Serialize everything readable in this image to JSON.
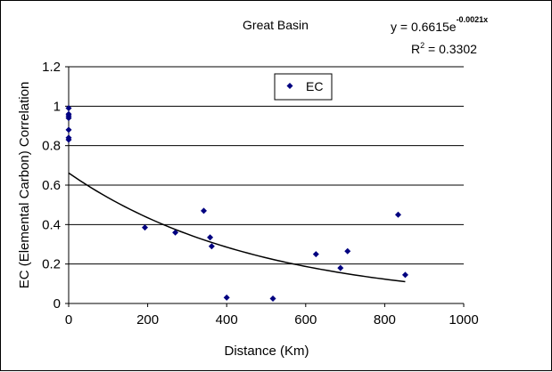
{
  "chart_data": {
    "type": "scatter",
    "title": "Great Basin",
    "xlabel": "Distance (Km)",
    "ylabel": "EC (Elemental Carbon) Correlation",
    "xlim": [
      0,
      1000
    ],
    "ylim": [
      0,
      1.2
    ],
    "x_ticks": [
      "0",
      "200",
      "400",
      "600",
      "800",
      "1000"
    ],
    "y_ticks": [
      "0",
      "0.2",
      "0.4",
      "0.6",
      "0.8",
      "1",
      "1.2"
    ],
    "grid": "horizontal",
    "legend": {
      "position": "top-center",
      "entries": [
        "EC"
      ]
    },
    "series": [
      {
        "name": "EC",
        "marker": "diamond",
        "color": "#000080",
        "points": [
          [
            0,
            0.99
          ],
          [
            0,
            0.96
          ],
          [
            0,
            0.95
          ],
          [
            0,
            0.94
          ],
          [
            0,
            0.88
          ],
          [
            0,
            0.84
          ],
          [
            0,
            0.83
          ],
          [
            193,
            0.385
          ],
          [
            270,
            0.36
          ],
          [
            342,
            0.47
          ],
          [
            358,
            0.335
          ],
          [
            362,
            0.29
          ],
          [
            400,
            0.03
          ],
          [
            517,
            0.025
          ],
          [
            626,
            0.25
          ],
          [
            688,
            0.18
          ],
          [
            706,
            0.265
          ],
          [
            834,
            0.45
          ],
          [
            852,
            0.145
          ]
        ]
      }
    ],
    "trendline": {
      "type": "exponential",
      "a": 0.6615,
      "b": -0.0021,
      "x_range": [
        0,
        852
      ],
      "color": "#000000",
      "equation_prefix": "y = 0.6615e",
      "equation_exponent": "-0.0021x",
      "r2_prefix": "R",
      "r2_sup": "2",
      "r2_value": " = 0.3302"
    }
  }
}
